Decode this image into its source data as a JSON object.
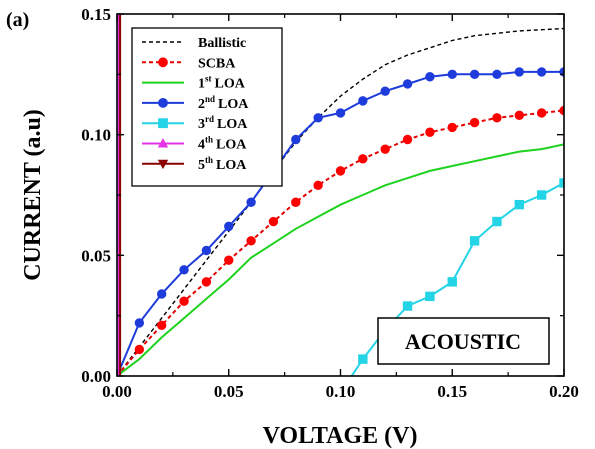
{
  "chart_data": {
    "type": "line",
    "panel_label": "(a)",
    "xlabel": "VOLTAGE (V)",
    "ylabel": "CURRENT (a.u)",
    "xlim": [
      0,
      0.2
    ],
    "ylim": [
      0,
      0.15
    ],
    "xticks": [
      "0.00",
      "0.05",
      "0.10",
      "0.15",
      "0.20"
    ],
    "yticks": [
      "0.00",
      "0.05",
      "0.10",
      "0.15"
    ],
    "annotation": "ACOUSTIC",
    "legend_position": "top-left",
    "series": [
      {
        "name": "Ballistic",
        "color": "#000000",
        "dash": "4,3",
        "marker": "none",
        "x": [
          0,
          0.01,
          0.02,
          0.03,
          0.04,
          0.05,
          0.06,
          0.07,
          0.08,
          0.09,
          0.1,
          0.11,
          0.12,
          0.13,
          0.14,
          0.15,
          0.16,
          0.17,
          0.18,
          0.19,
          0.2
        ],
        "y": [
          0,
          0.012,
          0.024,
          0.036,
          0.048,
          0.06,
          0.072,
          0.085,
          0.097,
          0.107,
          0.116,
          0.123,
          0.129,
          0.133,
          0.136,
          0.139,
          0.141,
          0.142,
          0.143,
          0.1435,
          0.144
        ]
      },
      {
        "name": "SCBA",
        "color": "#ff0000",
        "line_color": "#e60000",
        "dash": "4,3",
        "marker": "circle",
        "x": [
          0,
          0.01,
          0.02,
          0.03,
          0.04,
          0.05,
          0.06,
          0.07,
          0.08,
          0.09,
          0.1,
          0.11,
          0.12,
          0.13,
          0.14,
          0.15,
          0.16,
          0.17,
          0.18,
          0.19,
          0.2
        ],
        "y": [
          0,
          0.011,
          0.021,
          0.031,
          0.039,
          0.048,
          0.056,
          0.064,
          0.072,
          0.079,
          0.085,
          0.09,
          0.094,
          0.098,
          0.101,
          0.103,
          0.105,
          0.107,
          0.108,
          0.109,
          0.11
        ]
      },
      {
        "name": "1st LOA",
        "sup_base": "1",
        "sup": "st",
        "sup_rest": "LOA",
        "color": "#1ed21e",
        "dash": "",
        "marker": "none",
        "x": [
          0,
          0.01,
          0.02,
          0.03,
          0.04,
          0.05,
          0.06,
          0.07,
          0.08,
          0.09,
          0.1,
          0.11,
          0.12,
          0.13,
          0.14,
          0.15,
          0.16,
          0.17,
          0.18,
          0.19,
          0.2
        ],
        "y": [
          0,
          0.007,
          0.016,
          0.024,
          0.032,
          0.04,
          0.049,
          0.055,
          0.061,
          0.066,
          0.071,
          0.075,
          0.079,
          0.082,
          0.085,
          0.087,
          0.089,
          0.091,
          0.093,
          0.094,
          0.096
        ]
      },
      {
        "name": "2nd LOA",
        "sup_base": "2",
        "sup": "nd",
        "sup_rest": "LOA",
        "color": "#1e3cdc",
        "dash": "",
        "marker": "circle",
        "x": [
          0,
          0.01,
          0.02,
          0.03,
          0.04,
          0.05,
          0.06,
          0.07,
          0.08,
          0.09,
          0.1,
          0.11,
          0.12,
          0.13,
          0.14,
          0.15,
          0.16,
          0.17,
          0.18,
          0.19,
          0.2
        ],
        "y": [
          0,
          0.022,
          0.034,
          0.044,
          0.052,
          0.062,
          0.072,
          0.085,
          0.098,
          0.107,
          0.109,
          0.114,
          0.118,
          0.121,
          0.124,
          0.125,
          0.125,
          0.125,
          0.126,
          0.126,
          0.126
        ]
      },
      {
        "name": "3rd LOA",
        "sup_base": "3",
        "sup": "rd",
        "sup_rest": "LOA",
        "color": "#22d4e6",
        "dash": "",
        "marker": "square",
        "x": [
          0.105,
          0.11,
          0.12,
          0.13,
          0.14,
          0.15,
          0.16,
          0.17,
          0.18,
          0.19,
          0.2
        ],
        "y": [
          0,
          0.007,
          0.019,
          0.029,
          0.033,
          0.039,
          0.056,
          0.064,
          0.071,
          0.075,
          0.08
        ]
      },
      {
        "name": "4th LOA",
        "sup_base": "4",
        "sup": "th",
        "sup_rest": "LOA",
        "color": "#e632e6",
        "dash": "",
        "marker": "triangle-up",
        "x": [
          0.0007,
          0.0007
        ],
        "y": [
          0,
          0.15
        ]
      },
      {
        "name": "5th LOA",
        "sup_base": "5",
        "sup": "th",
        "sup_rest": "LOA",
        "color": "#8b0000",
        "dash": "",
        "marker": "triangle-down",
        "x": [
          0.0014,
          0.0014
        ],
        "y": [
          0,
          0.15
        ]
      }
    ]
  }
}
